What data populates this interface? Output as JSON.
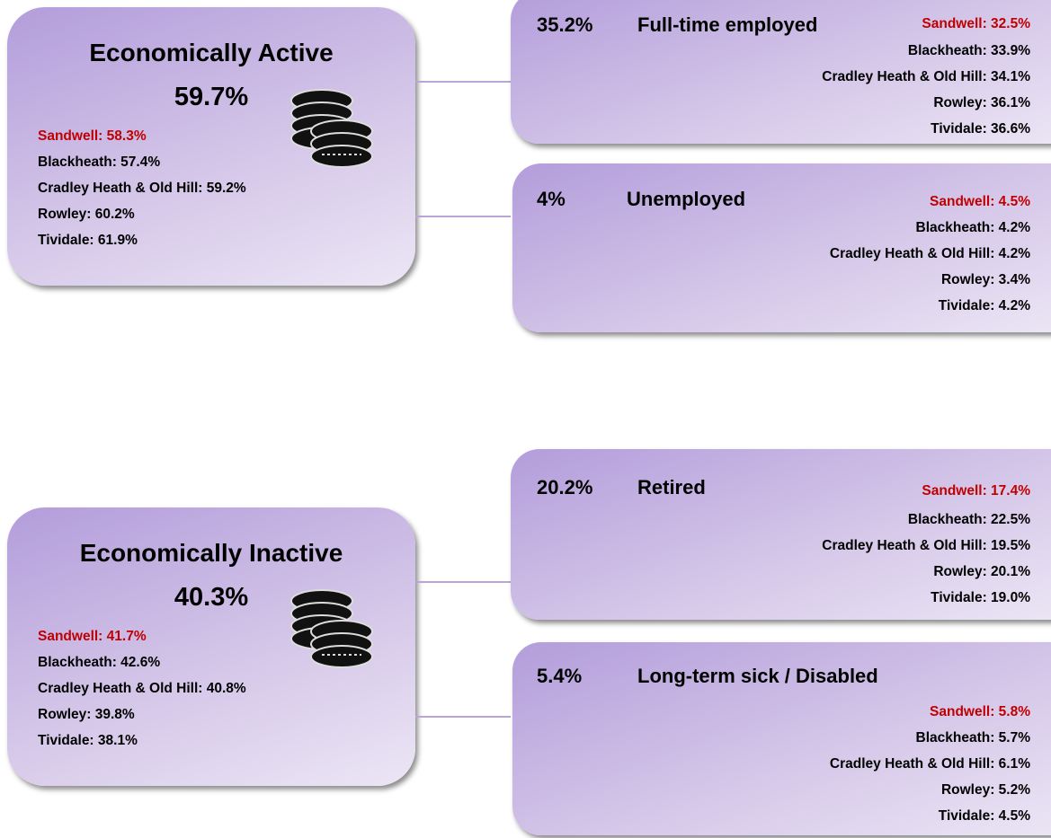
{
  "groups": [
    {
      "title": "Economically Active",
      "value": "59.7%",
      "comparisons": [
        "Sandwell: 58.3%",
        "Blackheath: 57.4%",
        "Cradley Heath & Old Hill: 59.2%",
        "Rowley: 60.2%",
        "Tividale: 61.9%"
      ],
      "breakdown": [
        {
          "value": "35.2%",
          "title": "Full-time employed",
          "comparisons": [
            "Sandwell: 32.5%",
            "Blackheath: 33.9%",
            "Cradley Heath & Old Hill: 34.1%",
            "Rowley: 36.1%",
            "Tividale: 36.6%"
          ]
        },
        {
          "value": "4%",
          "title": "Unemployed",
          "comparisons": [
            "Sandwell: 4.5%",
            "Blackheath: 4.2%",
            "Cradley Heath & Old Hill: 4.2%",
            "Rowley: 3.4%",
            "Tividale: 4.2%"
          ]
        }
      ]
    },
    {
      "title": "Economically Inactive",
      "value": "40.3%",
      "comparisons": [
        "Sandwell: 41.7%",
        "Blackheath: 42.6%",
        "Cradley Heath & Old Hill: 40.8%",
        "Rowley: 39.8%",
        "Tividale: 38.1%"
      ],
      "breakdown": [
        {
          "value": "20.2%",
          "title": "Retired",
          "comparisons": [
            "Sandwell: 17.4%",
            "Blackheath: 22.5%",
            "Cradley Heath & Old Hill: 19.5%",
            "Rowley: 20.1%",
            "Tividale: 19.0%"
          ]
        },
        {
          "value": "5.4%",
          "title": "Long-term sick / Disabled",
          "comparisons": [
            "Sandwell: 5.8%",
            "Blackheath: 5.7%",
            "Cradley Heath & Old Hill: 6.1%",
            "Rowley: 5.2%",
            "Tividale: 4.5%"
          ]
        }
      ]
    }
  ]
}
